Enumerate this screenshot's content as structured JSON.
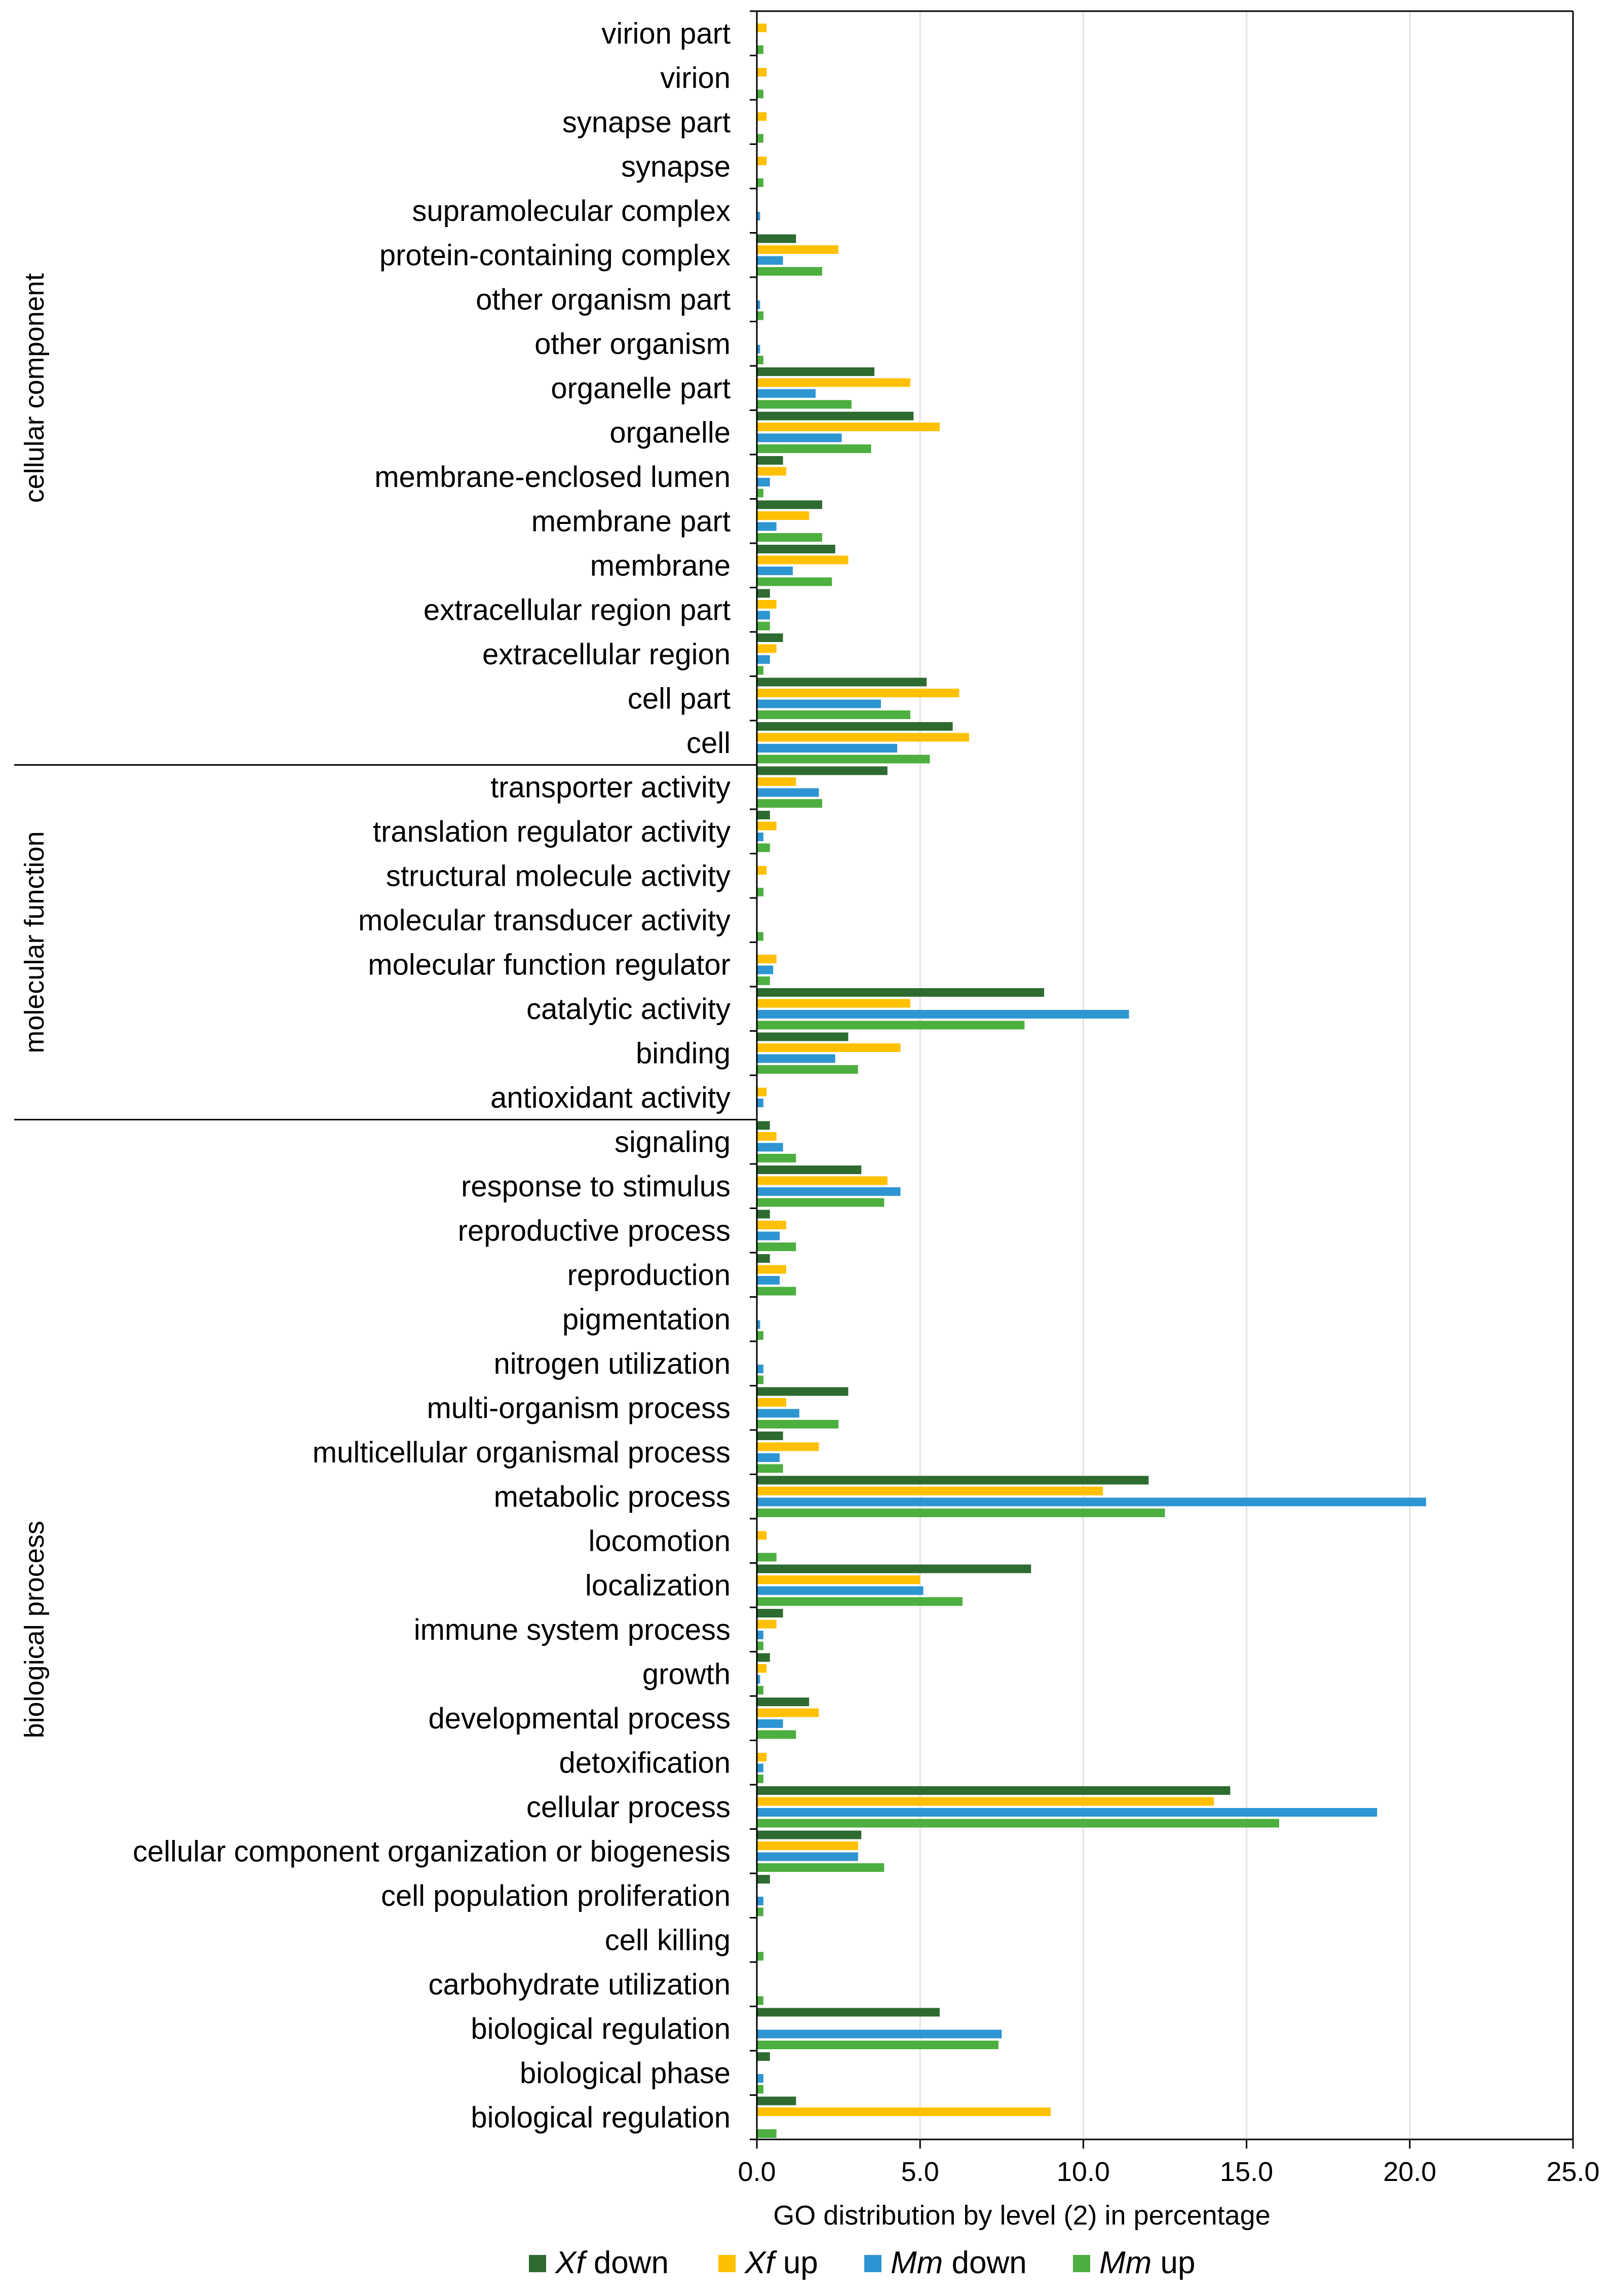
{
  "chart_data": {
    "type": "bar",
    "orientation": "horizontal",
    "title": "",
    "xlabel": "GO distribution by level (2) in percentage",
    "ylabel": "",
    "xlim": [
      0,
      25
    ],
    "xticks": [
      "0.0",
      "5.0",
      "10.0",
      "15.0",
      "20.0",
      "25.0"
    ],
    "grid": true,
    "legend_position": "bottom",
    "categories": [
      "virion part",
      "virion",
      "synapse part",
      "synapse",
      "supramolecular complex",
      "protein-containing complex",
      "other organism part",
      "other organism",
      "organelle part",
      "organelle",
      "membrane-enclosed lumen",
      "membrane part",
      "membrane",
      "extracellular region part",
      "extracellular region",
      "cell part",
      "cell",
      "transporter activity",
      "translation regulator activity",
      "structural molecule activity",
      "molecular transducer activity",
      "molecular function regulator",
      "catalytic activity",
      "binding",
      "antioxidant activity",
      "signaling",
      "response to stimulus",
      "reproductive process",
      "reproduction",
      "pigmentation",
      "nitrogen utilization",
      "multi-organism process",
      "multicellular organismal process",
      "metabolic process",
      "locomotion",
      "localization",
      "immune system process",
      "growth",
      "developmental process",
      "detoxification",
      "cellular process",
      "cellular component organization or biogenesis",
      "cell population proliferation",
      "cell killing",
      "carbohydrate utilization",
      "biological regulation",
      "biological phase",
      "biological regulation"
    ],
    "groups": [
      {
        "name": "cellular component",
        "start": 0,
        "end": 16
      },
      {
        "name": "molecular function",
        "start": 17,
        "end": 24
      },
      {
        "name": "biological process",
        "start": 25,
        "end": 47
      }
    ],
    "series": [
      {
        "name": "down",
        "prefix": "Xf",
        "color": "#2e6b30",
        "values": [
          0,
          0,
          0,
          0,
          0,
          1.2,
          0,
          0,
          3.6,
          4.8,
          0.8,
          2.0,
          2.4,
          0.4,
          0.8,
          5.2,
          6.0,
          4.0,
          0.4,
          0,
          0,
          0,
          8.8,
          2.8,
          0,
          0.4,
          3.2,
          0.4,
          0.4,
          0,
          0,
          2.8,
          0.8,
          12.0,
          0,
          8.4,
          0.8,
          0.4,
          1.6,
          0,
          14.5,
          3.2,
          0.4,
          0,
          0,
          5.6,
          0.4,
          1.2
        ]
      },
      {
        "name": "up",
        "prefix": "Xf",
        "color": "#ffc000",
        "values": [
          0.3,
          0.3,
          0.3,
          0.3,
          0,
          2.5,
          0,
          0,
          4.7,
          5.6,
          0.9,
          1.6,
          2.8,
          0.6,
          0.6,
          6.2,
          6.5,
          1.2,
          0.6,
          0.3,
          0,
          0.6,
          4.7,
          4.4,
          0.3,
          0.6,
          4.0,
          0.9,
          0.9,
          0,
          0,
          0.9,
          1.9,
          10.6,
          0.3,
          5.0,
          0.6,
          0.3,
          1.9,
          0.3,
          14.0,
          3.1,
          0,
          0,
          0,
          0,
          0,
          9.0
        ]
      },
      {
        "name": "down",
        "prefix": "Mm",
        "color": "#2e95d3",
        "values": [
          0,
          0,
          0,
          0,
          0.1,
          0.8,
          0.1,
          0.1,
          1.8,
          2.6,
          0.4,
          0.6,
          1.1,
          0.4,
          0.4,
          3.8,
          4.3,
          1.9,
          0.2,
          0,
          0,
          0.5,
          11.4,
          2.4,
          0.2,
          0.8,
          4.4,
          0.7,
          0.7,
          0.1,
          0.2,
          1.3,
          0.7,
          20.5,
          0,
          5.1,
          0.2,
          0.1,
          0.8,
          0.2,
          19.0,
          3.1,
          0.2,
          0,
          0,
          7.5,
          0.2,
          0
        ]
      },
      {
        "name": "up",
        "prefix": "Mm",
        "color": "#4caf3f",
        "values": [
          0.2,
          0.2,
          0.2,
          0.2,
          0,
          2.0,
          0.2,
          0.2,
          2.9,
          3.5,
          0.2,
          2.0,
          2.3,
          0.4,
          0.2,
          4.7,
          5.3,
          2.0,
          0.4,
          0.2,
          0.2,
          0.4,
          8.2,
          3.1,
          0,
          1.2,
          3.9,
          1.2,
          1.2,
          0.2,
          0.2,
          2.5,
          0.8,
          12.5,
          0.6,
          6.3,
          0.2,
          0.2,
          1.2,
          0.2,
          16.0,
          3.9,
          0.2,
          0.2,
          0.2,
          7.4,
          0.2,
          0.6
        ]
      }
    ]
  }
}
